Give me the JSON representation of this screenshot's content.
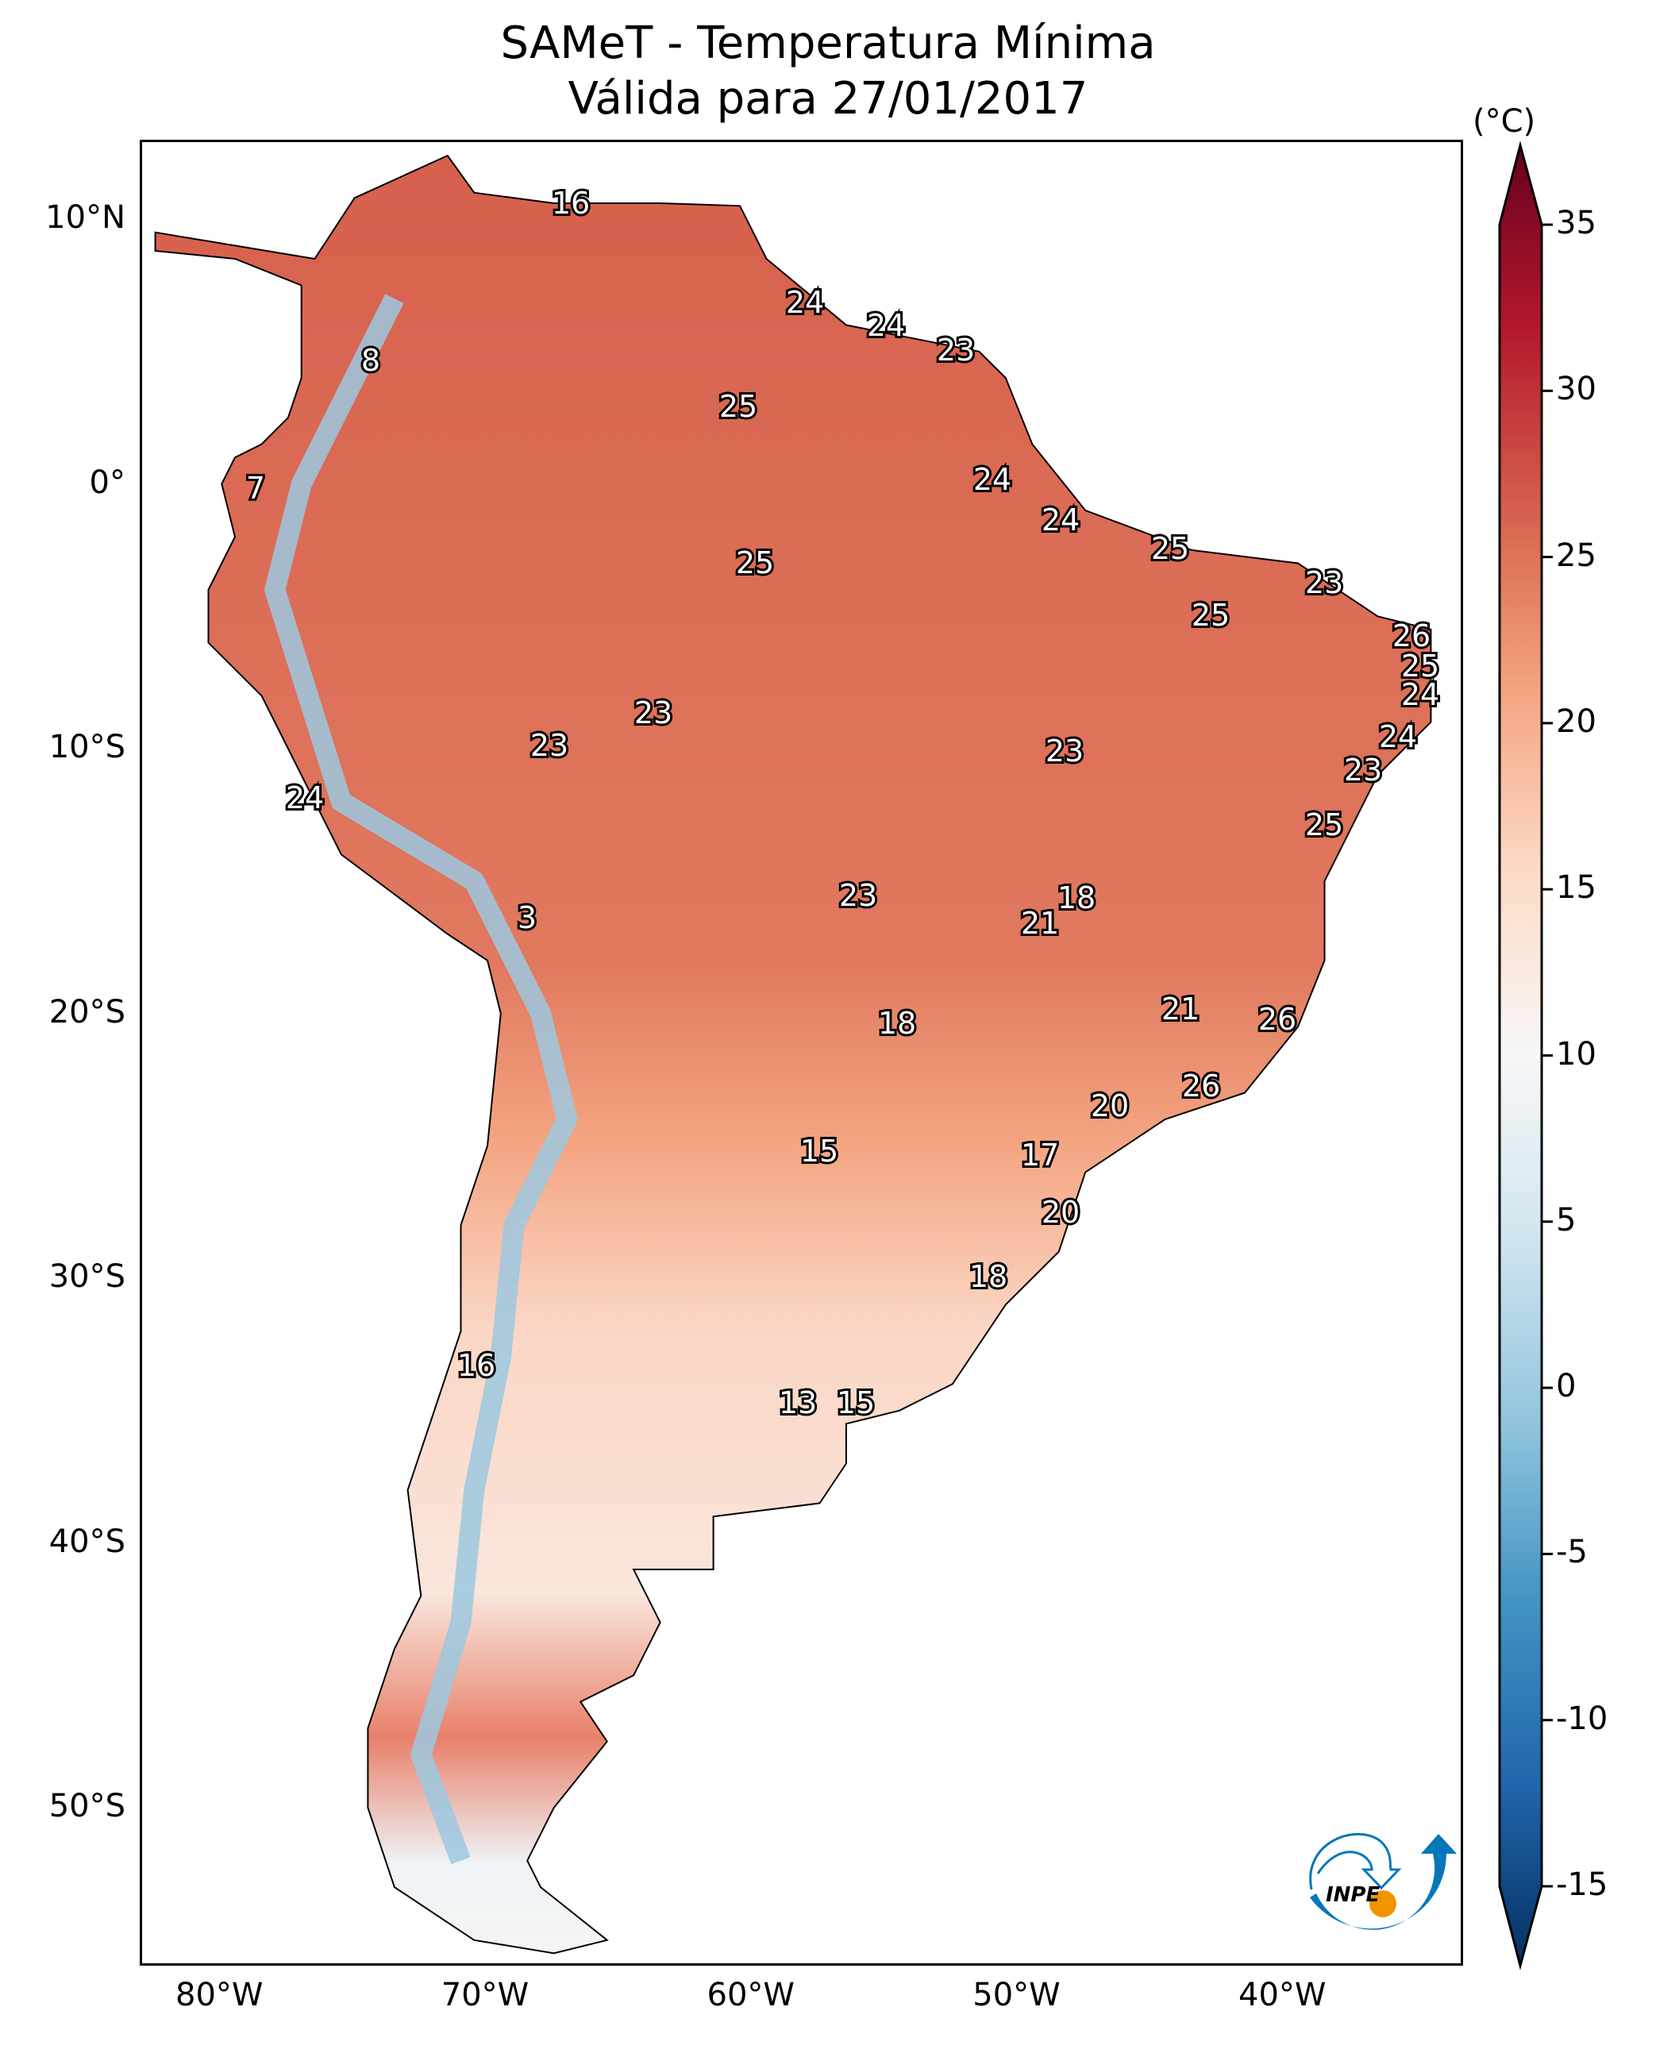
{
  "title": {
    "line1": "SAMeT - Temperatura Mínima",
    "line2": "Válida para 27/01/2017"
  },
  "colorbar": {
    "unit": "(°C)",
    "colormap": "RdBu_r",
    "range": [
      -15,
      35
    ],
    "extend": "both",
    "ticks": [
      "35",
      "30",
      "25",
      "20",
      "15",
      "10",
      "5",
      "0",
      "-5",
      "-10",
      "-15"
    ]
  },
  "axes": {
    "lon_ticks": [
      "80°W",
      "70°W",
      "60°W",
      "50°W",
      "40°W"
    ],
    "lat_ticks": [
      "10°N",
      "0°",
      "10°S",
      "20°S",
      "30°S",
      "40°S",
      "50°S"
    ]
  },
  "station_labels": [
    "16",
    "24",
    "24",
    "23",
    "8",
    "25",
    "7",
    "24",
    "24",
    "25",
    "25",
    "23",
    "25",
    "26",
    "25",
    "24",
    "23",
    "24",
    "23",
    "23",
    "23",
    "24",
    "25",
    "23",
    "18",
    "3",
    "21",
    "21",
    "26",
    "18",
    "20",
    "26",
    "15",
    "17",
    "20",
    "18",
    "16",
    "13",
    "15"
  ],
  "logo": {
    "text": "INPE",
    "colors": {
      "blue": "#0477b9",
      "orange": "#f29400"
    }
  }
}
